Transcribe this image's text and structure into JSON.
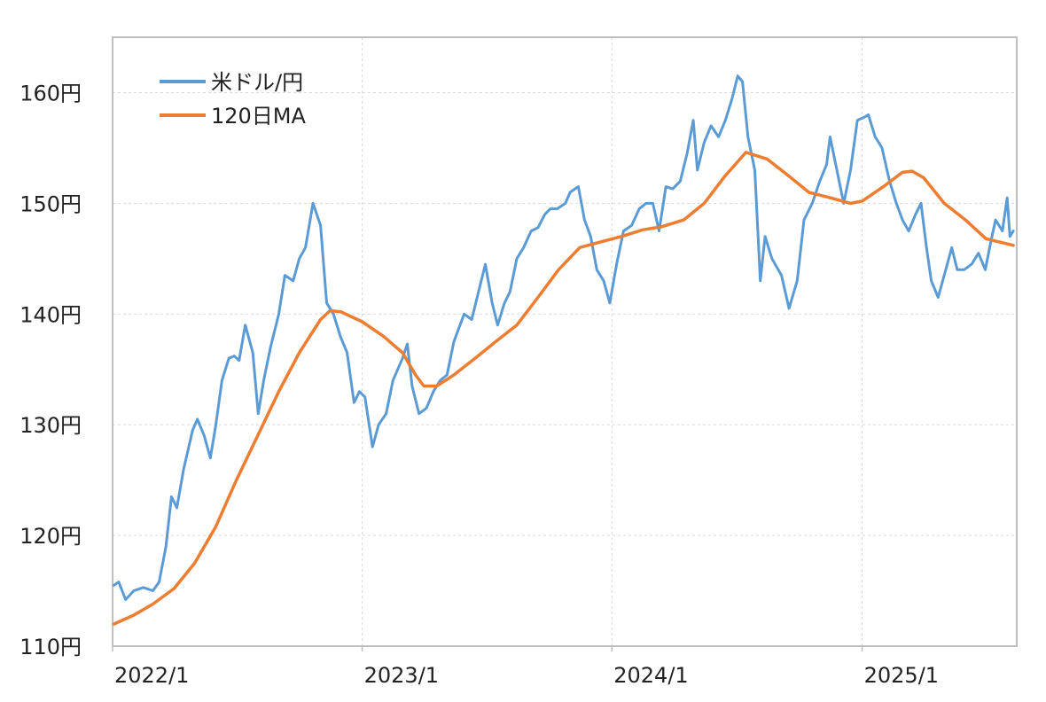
{
  "colors": {
    "usd_jpy": "#5b9bd5",
    "ma120": "#ed7d31",
    "axis": "#bfbfbf",
    "grid": "#d9d9d9"
  },
  "chart_data": {
    "type": "line",
    "title": "",
    "xlabel": "",
    "ylabel": "",
    "ylim": [
      110,
      165
    ],
    "xlim": [
      "2022-01-01",
      "2025-08-15"
    ],
    "y_ticks": [
      {
        "value": 110,
        "label": "110円"
      },
      {
        "value": 120,
        "label": "120円"
      },
      {
        "value": 130,
        "label": "130円"
      },
      {
        "value": 140,
        "label": "140円"
      },
      {
        "value": 150,
        "label": "150円"
      },
      {
        "value": 160,
        "label": "160円"
      }
    ],
    "x_ticks": [
      {
        "value": "2022-01-01",
        "label": "2022/1"
      },
      {
        "value": "2023-01-01",
        "label": "2023/1"
      },
      {
        "value": "2024-01-01",
        "label": "2024/1"
      },
      {
        "value": "2025-01-01",
        "label": "2025/1"
      }
    ],
    "grid": true,
    "legend_position": "top-left",
    "series": [
      {
        "name": "米ドル/円",
        "color": "#5b9bd5",
        "points": [
          [
            "2022-01-03",
            115.5
          ],
          [
            "2022-01-10",
            115.8
          ],
          [
            "2022-01-20",
            114.2
          ],
          [
            "2022-02-01",
            115.0
          ],
          [
            "2022-02-15",
            115.3
          ],
          [
            "2022-03-01",
            115.0
          ],
          [
            "2022-03-10",
            115.8
          ],
          [
            "2022-03-20",
            119.0
          ],
          [
            "2022-03-28",
            123.5
          ],
          [
            "2022-04-05",
            122.5
          ],
          [
            "2022-04-15",
            126.0
          ],
          [
            "2022-04-28",
            129.5
          ],
          [
            "2022-05-05",
            130.5
          ],
          [
            "2022-05-15",
            129.0
          ],
          [
            "2022-05-24",
            127.0
          ],
          [
            "2022-06-01",
            130.0
          ],
          [
            "2022-06-10",
            134.0
          ],
          [
            "2022-06-20",
            136.0
          ],
          [
            "2022-06-28",
            136.2
          ],
          [
            "2022-07-05",
            135.8
          ],
          [
            "2022-07-14",
            139.0
          ],
          [
            "2022-07-25",
            136.5
          ],
          [
            "2022-08-02",
            131.0
          ],
          [
            "2022-08-10",
            134.0
          ],
          [
            "2022-08-20",
            137.0
          ],
          [
            "2022-09-01",
            140.0
          ],
          [
            "2022-09-10",
            143.5
          ],
          [
            "2022-09-22",
            143.0
          ],
          [
            "2022-10-01",
            145.0
          ],
          [
            "2022-10-10",
            146.0
          ],
          [
            "2022-10-21",
            150.0
          ],
          [
            "2022-11-01",
            148.0
          ],
          [
            "2022-11-10",
            141.0
          ],
          [
            "2022-11-20",
            140.0
          ],
          [
            "2022-11-30",
            138.0
          ],
          [
            "2022-12-10",
            136.5
          ],
          [
            "2022-12-20",
            132.0
          ],
          [
            "2022-12-28",
            133.0
          ],
          [
            "2023-01-05",
            132.5
          ],
          [
            "2023-01-16",
            128.0
          ],
          [
            "2023-01-25",
            130.0
          ],
          [
            "2023-02-05",
            131.0
          ],
          [
            "2023-02-15",
            134.0
          ],
          [
            "2023-03-01",
            136.0
          ],
          [
            "2023-03-08",
            137.3
          ],
          [
            "2023-03-15",
            133.5
          ],
          [
            "2023-03-25",
            131.0
          ],
          [
            "2023-04-05",
            131.5
          ],
          [
            "2023-04-15",
            133.0
          ],
          [
            "2023-04-25",
            134.0
          ],
          [
            "2023-05-05",
            134.5
          ],
          [
            "2023-05-15",
            137.5
          ],
          [
            "2023-05-30",
            140.0
          ],
          [
            "2023-06-10",
            139.5
          ],
          [
            "2023-06-20",
            142.0
          ],
          [
            "2023-06-30",
            144.5
          ],
          [
            "2023-07-10",
            141.0
          ],
          [
            "2023-07-18",
            139.0
          ],
          [
            "2023-07-28",
            141.0
          ],
          [
            "2023-08-05",
            142.0
          ],
          [
            "2023-08-15",
            145.0
          ],
          [
            "2023-08-25",
            146.0
          ],
          [
            "2023-09-05",
            147.5
          ],
          [
            "2023-09-15",
            147.8
          ],
          [
            "2023-09-25",
            149.0
          ],
          [
            "2023-10-03",
            149.5
          ],
          [
            "2023-10-13",
            149.5
          ],
          [
            "2023-10-25",
            150.0
          ],
          [
            "2023-11-01",
            151.0
          ],
          [
            "2023-11-13",
            151.5
          ],
          [
            "2023-11-22",
            148.5
          ],
          [
            "2023-12-01",
            147.0
          ],
          [
            "2023-12-10",
            144.0
          ],
          [
            "2023-12-20",
            143.0
          ],
          [
            "2023-12-29",
            141.0
          ],
          [
            "2024-01-08",
            144.5
          ],
          [
            "2024-01-18",
            147.5
          ],
          [
            "2024-01-30",
            148.0
          ],
          [
            "2024-02-10",
            149.5
          ],
          [
            "2024-02-20",
            150.0
          ],
          [
            "2024-03-01",
            150.0
          ],
          [
            "2024-03-10",
            147.5
          ],
          [
            "2024-03-20",
            151.5
          ],
          [
            "2024-03-30",
            151.3
          ],
          [
            "2024-04-10",
            152.0
          ],
          [
            "2024-04-20",
            154.5
          ],
          [
            "2024-04-29",
            157.5
          ],
          [
            "2024-05-05",
            153.0
          ],
          [
            "2024-05-15",
            155.5
          ],
          [
            "2024-05-25",
            157.0
          ],
          [
            "2024-06-05",
            156.0
          ],
          [
            "2024-06-15",
            157.5
          ],
          [
            "2024-06-25",
            159.5
          ],
          [
            "2024-07-03",
            161.5
          ],
          [
            "2024-07-10",
            161.0
          ],
          [
            "2024-07-18",
            156.0
          ],
          [
            "2024-07-28",
            153.0
          ],
          [
            "2024-08-05",
            143.0
          ],
          [
            "2024-08-12",
            147.0
          ],
          [
            "2024-08-22",
            145.0
          ],
          [
            "2024-09-05",
            143.5
          ],
          [
            "2024-09-16",
            140.5
          ],
          [
            "2024-09-28",
            143.0
          ],
          [
            "2024-10-08",
            148.5
          ],
          [
            "2024-10-20",
            150.0
          ],
          [
            "2024-10-31",
            152.0
          ],
          [
            "2024-11-10",
            153.5
          ],
          [
            "2024-11-15",
            156.0
          ],
          [
            "2024-11-25",
            153.0
          ],
          [
            "2024-12-05",
            150.0
          ],
          [
            "2024-12-15",
            153.0
          ],
          [
            "2024-12-25",
            157.5
          ],
          [
            "2025-01-05",
            157.8
          ],
          [
            "2025-01-10",
            158.0
          ],
          [
            "2025-01-20",
            156.0
          ],
          [
            "2025-01-30",
            155.0
          ],
          [
            "2025-02-10",
            152.0
          ],
          [
            "2025-02-20",
            150.0
          ],
          [
            "2025-03-01",
            148.5
          ],
          [
            "2025-03-10",
            147.5
          ],
          [
            "2025-03-20",
            149.0
          ],
          [
            "2025-03-28",
            150.0
          ],
          [
            "2025-04-05",
            146.0
          ],
          [
            "2025-04-12",
            143.0
          ],
          [
            "2025-04-22",
            141.5
          ],
          [
            "2025-05-01",
            143.5
          ],
          [
            "2025-05-12",
            146.0
          ],
          [
            "2025-05-20",
            144.0
          ],
          [
            "2025-05-30",
            144.0
          ],
          [
            "2025-06-10",
            144.5
          ],
          [
            "2025-06-20",
            145.5
          ],
          [
            "2025-06-30",
            144.0
          ],
          [
            "2025-07-08",
            146.5
          ],
          [
            "2025-07-15",
            148.5
          ],
          [
            "2025-07-25",
            147.5
          ],
          [
            "2025-08-01",
            150.5
          ],
          [
            "2025-08-05",
            147.0
          ],
          [
            "2025-08-10",
            147.5
          ]
        ]
      },
      {
        "name": "120日MA",
        "color": "#ed7d31",
        "points": [
          [
            "2022-01-03",
            112.0
          ],
          [
            "2022-02-01",
            112.8
          ],
          [
            "2022-03-01",
            113.8
          ],
          [
            "2022-04-01",
            115.2
          ],
          [
            "2022-05-01",
            117.5
          ],
          [
            "2022-06-01",
            120.8
          ],
          [
            "2022-07-01",
            125.0
          ],
          [
            "2022-08-01",
            129.0
          ],
          [
            "2022-09-01",
            133.0
          ],
          [
            "2022-10-01",
            136.5
          ],
          [
            "2022-11-01",
            139.5
          ],
          [
            "2022-11-15",
            140.3
          ],
          [
            "2022-12-01",
            140.2
          ],
          [
            "2023-01-01",
            139.3
          ],
          [
            "2023-02-01",
            138.0
          ],
          [
            "2023-03-01",
            136.5
          ],
          [
            "2023-03-20",
            134.5
          ],
          [
            "2023-04-01",
            133.5
          ],
          [
            "2023-04-20",
            133.5
          ],
          [
            "2023-05-15",
            134.5
          ],
          [
            "2023-06-15",
            136.0
          ],
          [
            "2023-07-15",
            137.5
          ],
          [
            "2023-08-15",
            139.0
          ],
          [
            "2023-09-15",
            141.5
          ],
          [
            "2023-10-15",
            144.0
          ],
          [
            "2023-11-15",
            146.0
          ],
          [
            "2023-12-15",
            146.5
          ],
          [
            "2024-01-15",
            147.0
          ],
          [
            "2024-02-15",
            147.6
          ],
          [
            "2024-03-15",
            147.9
          ],
          [
            "2024-04-15",
            148.5
          ],
          [
            "2024-05-15",
            150.0
          ],
          [
            "2024-06-15",
            152.5
          ],
          [
            "2024-07-15",
            154.6
          ],
          [
            "2024-08-15",
            154.0
          ],
          [
            "2024-09-15",
            152.5
          ],
          [
            "2024-10-15",
            151.0
          ],
          [
            "2024-11-15",
            150.5
          ],
          [
            "2024-12-15",
            150.0
          ],
          [
            "2025-01-01",
            150.2
          ],
          [
            "2025-02-01",
            151.5
          ],
          [
            "2025-03-01",
            152.8
          ],
          [
            "2025-03-15",
            152.9
          ],
          [
            "2025-04-01",
            152.3
          ],
          [
            "2025-05-01",
            150.0
          ],
          [
            "2025-06-01",
            148.5
          ],
          [
            "2025-07-01",
            146.8
          ],
          [
            "2025-08-10",
            146.2
          ]
        ]
      }
    ]
  }
}
